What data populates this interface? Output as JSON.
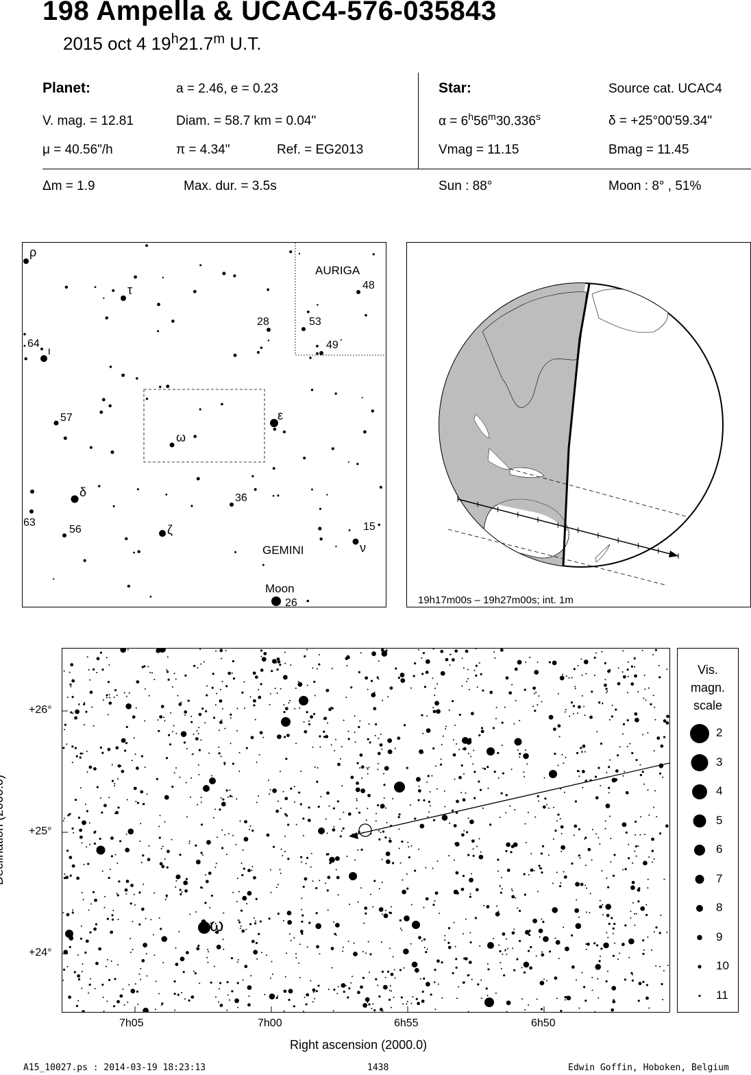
{
  "header": {
    "title": "198 Ampella  &  UCAC4-576-035843",
    "date": "2015 oct  4  19",
    "hours_sup": "h",
    "minutes": "21.7",
    "minutes_sup": "m",
    "ut": " U.T."
  },
  "planet": {
    "label": "Planet:",
    "orbit": "a = 2.46, e = 0.23",
    "vmag": "V. mag. = 12.81",
    "diam": "Diam. = 58.7 km = 0.04\"",
    "mu": "μ =  40.56\"/h",
    "pi": "π =  4.34\"",
    "ref": "Ref. = EG2013"
  },
  "star": {
    "label": "Star:",
    "source": "Source cat.  UCAC4",
    "alpha_prefix": "α =  6",
    "alpha_h": "h",
    "alpha_56": "56",
    "alpha_m": "m",
    "alpha_sec": "30.336",
    "alpha_s": "s",
    "delta": "δ = +25°00'59.34\"",
    "vmag": "Vmag = 11.15",
    "bmag": "Bmag = 11.45"
  },
  "summary": {
    "dm": "Δm = 1.9",
    "maxdur": "Max. dur. = 3.5s",
    "sun": "Sun :  88°",
    "moon": "Moon :   8° , 51%"
  },
  "finder": {
    "constellations": [
      "AURIGA",
      "GEMINI"
    ],
    "moon_label": "Moon",
    "labels": [
      "ρ",
      "τ",
      "48",
      "28",
      "53",
      "49",
      "64",
      "ι",
      "57",
      "ε",
      "ω",
      "δ",
      "36",
      "63",
      "56",
      "ζ",
      "15",
      "ν",
      "26"
    ]
  },
  "globe": {
    "caption": "19h17m00s – 19h27m00s; int.  1m"
  },
  "starchart": {
    "ylabel": "Declination (2000.0)",
    "xlabel": "Right ascension (2000.0)",
    "x_ticks": [
      "7h05",
      "7h00",
      "6h55",
      "6h50"
    ],
    "y_ticks": [
      "+26°",
      "+25°",
      "+24°"
    ],
    "omega_label": "ω",
    "path_color": "#000000"
  },
  "mag_scale": {
    "title_lines": [
      "Vis.",
      "magn.",
      "scale"
    ],
    "magnitudes": [
      "2",
      "3",
      "4",
      "5",
      "6",
      "7",
      "8",
      "9",
      "10",
      "11"
    ]
  },
  "footer": {
    "file": "A15_10027.ps : 2014-03-19 18:23:13",
    "page": "1438",
    "author": "Edwin Goffin, Hoboken, Belgium"
  }
}
